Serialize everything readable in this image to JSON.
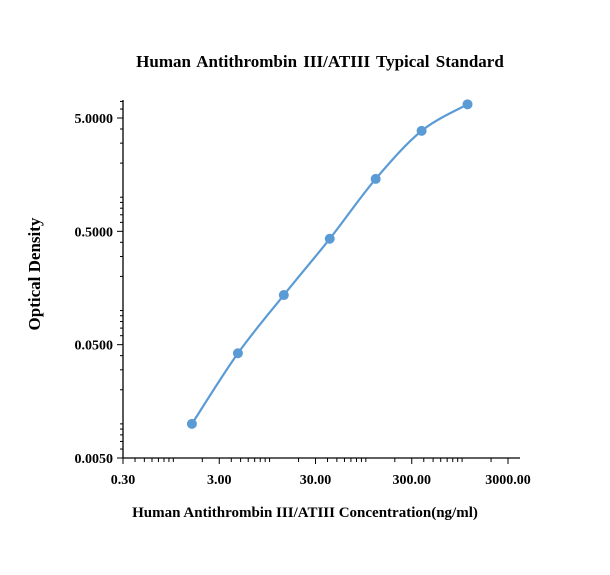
{
  "chart_data": {
    "type": "line",
    "title": "Human Antithrombin  III/ATIII  Typical Standard",
    "xlabel": "Human Antithrombin  III/ATIII  Concentration(ng/ml)",
    "ylabel": "Optical Density",
    "x_scale": "log",
    "y_scale": "log",
    "xlim": [
      0.3,
      3000
    ],
    "ylim": [
      0.005,
      5
    ],
    "x_ticks": [
      0.3,
      3,
      30,
      300,
      3000
    ],
    "x_tick_labels": [
      "0.30",
      "3.00",
      "30.00",
      "300.00",
      "3000.00"
    ],
    "y_ticks": [
      0.005,
      0.05,
      0.5,
      5
    ],
    "y_tick_labels": [
      "0.0050",
      "0.0500",
      "0.5000",
      "5.0000"
    ],
    "grid": false,
    "series": [
      {
        "color": "#5B9BD5",
        "x": [
          1.56,
          4.69,
          14.06,
          42.19,
          126.56,
          379.69,
          1139
        ],
        "y": [
          0.01,
          0.042,
          0.137,
          0.43,
          1.45,
          3.85,
          6.6
        ]
      }
    ]
  }
}
